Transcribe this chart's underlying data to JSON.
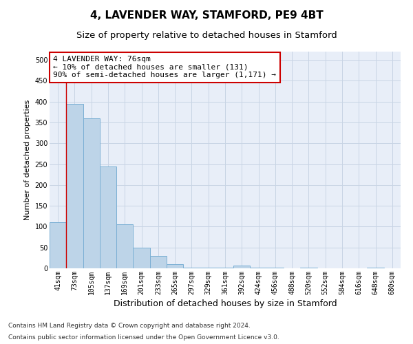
{
  "title1": "4, LAVENDER WAY, STAMFORD, PE9 4BT",
  "title2": "Size of property relative to detached houses in Stamford",
  "xlabel": "Distribution of detached houses by size in Stamford",
  "ylabel": "Number of detached properties",
  "categories": [
    "41sqm",
    "73sqm",
    "105sqm",
    "137sqm",
    "169sqm",
    "201sqm",
    "233sqm",
    "265sqm",
    "297sqm",
    "329sqm",
    "361sqm",
    "392sqm",
    "424sqm",
    "456sqm",
    "488sqm",
    "520sqm",
    "552sqm",
    "584sqm",
    "616sqm",
    "648sqm",
    "680sqm"
  ],
  "values": [
    110,
    395,
    360,
    245,
    105,
    50,
    30,
    10,
    2,
    2,
    2,
    6,
    2,
    1,
    0,
    1,
    0,
    0,
    0,
    2,
    0
  ],
  "bar_color": "#bdd4e8",
  "bar_edge_color": "#7aafd4",
  "bar_edge_width": 0.7,
  "red_line_x": 0.5,
  "annotation_text": "4 LAVENDER WAY: 76sqm\n← 10% of detached houses are smaller (131)\n90% of semi-detached houses are larger (1,171) →",
  "annotation_box_color": "#ffffff",
  "annotation_box_edge": "#cc0000",
  "ylim": [
    0,
    520
  ],
  "yticks": [
    0,
    50,
    100,
    150,
    200,
    250,
    300,
    350,
    400,
    450,
    500
  ],
  "footer1": "Contains HM Land Registry data © Crown copyright and database right 2024.",
  "footer2": "Contains public sector information licensed under the Open Government Licence v3.0.",
  "bg_color": "#ffffff",
  "plot_bg_color": "#e8eef8",
  "grid_color": "#c8d4e4",
  "title1_fontsize": 11,
  "title2_fontsize": 9.5,
  "xlabel_fontsize": 9,
  "ylabel_fontsize": 8,
  "tick_fontsize": 7,
  "ann_fontsize": 8,
  "footer_fontsize": 6.5
}
